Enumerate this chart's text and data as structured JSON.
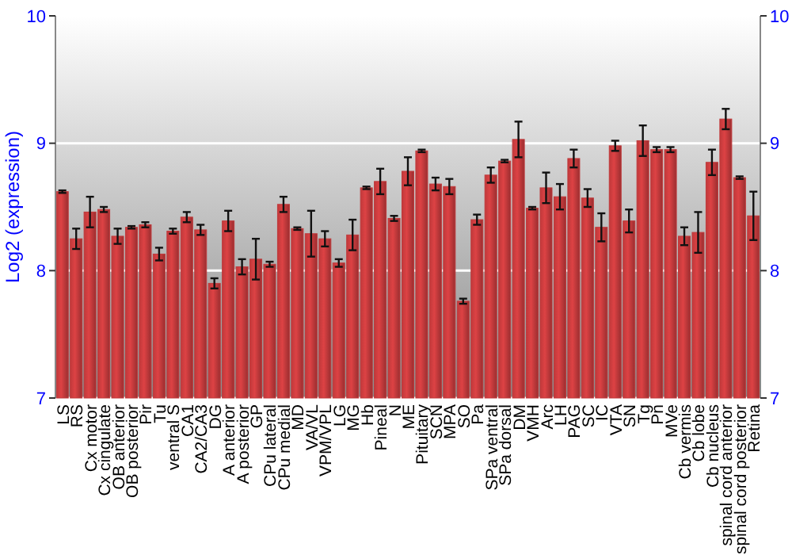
{
  "chart_data": {
    "type": "bar",
    "ylabel": "Log2 (expression)",
    "categories": [
      "LS",
      "RS",
      "Cx motor",
      "Cx cingulate",
      "OB anterior",
      "OB posterior",
      "Pir",
      "Tu",
      "ventral S",
      "CA1",
      "CA2/CA3",
      "DG",
      "A anterior",
      "A posterior",
      "GP",
      "CPu lateral",
      "CPu medial",
      "MD",
      "VA/VL",
      "VPM/VPL",
      "LG",
      "MG",
      "Hb",
      "Pineal",
      "N",
      "ME",
      "Pituitary",
      "SCN",
      "MPA",
      "SO",
      "Pa",
      "SPa ventral",
      "SPa dorsal",
      "DM",
      "VMH",
      "Arc",
      "LH",
      "PAG",
      "SC",
      "IC",
      "VTA",
      "SN",
      "Tg",
      "Pn",
      "MVe",
      "Cb vermis",
      "Cb lobe",
      "Cb nucleus",
      "spinal cord anterior",
      "spinal cord posterior",
      "Retina"
    ],
    "values": [
      8.62,
      8.25,
      8.46,
      8.48,
      8.27,
      8.34,
      8.36,
      8.13,
      8.31,
      8.42,
      8.32,
      7.9,
      8.39,
      8.03,
      8.09,
      8.05,
      8.52,
      8.33,
      8.29,
      8.25,
      8.06,
      8.28,
      8.65,
      8.7,
      8.41,
      8.78,
      8.94,
      8.68,
      8.66,
      7.76,
      8.4,
      8.75,
      8.86,
      9.03,
      8.49,
      8.65,
      8.58,
      8.88,
      8.57,
      8.34,
      8.98,
      8.39,
      9.02,
      8.95,
      8.95,
      8.27,
      8.3,
      8.85,
      9.19,
      8.73,
      8.43
    ],
    "errors": [
      0.01,
      0.08,
      0.12,
      0.02,
      0.06,
      0.01,
      0.02,
      0.05,
      0.02,
      0.04,
      0.04,
      0.04,
      0.08,
      0.06,
      0.16,
      0.02,
      0.06,
      0.01,
      0.18,
      0.06,
      0.03,
      0.12,
      0.01,
      0.1,
      0.02,
      0.11,
      0.01,
      0.05,
      0.06,
      0.02,
      0.04,
      0.06,
      0.01,
      0.14,
      0.01,
      0.12,
      0.1,
      0.07,
      0.07,
      0.11,
      0.04,
      0.09,
      0.12,
      0.02,
      0.02,
      0.07,
      0.16,
      0.1,
      0.08,
      0.01,
      0.19
    ],
    "color": "#c0393b",
    "ylim": [
      7,
      10
    ],
    "yticks": [
      7,
      8,
      9,
      10
    ],
    "y2lim": [
      7,
      10
    ],
    "y2ticks": [
      7,
      8,
      9,
      10
    ],
    "grid": "y"
  }
}
